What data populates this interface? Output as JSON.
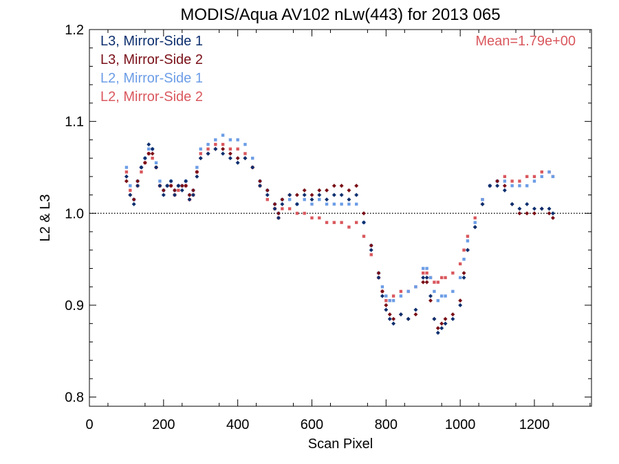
{
  "chart_data": {
    "type": "scatter",
    "title": "MODIS/Aqua AV102 nLw(443) for 2013 065",
    "xlabel": "Scan Pixel",
    "ylabel": "L2 & L3",
    "xlim": [
      0,
      1354
    ],
    "ylim": [
      0.79,
      1.2
    ],
    "xticks": [
      0,
      200,
      400,
      600,
      800,
      1000,
      1200
    ],
    "yticks": [
      0.8,
      0.9,
      1.0,
      1.1,
      1.2
    ],
    "ytick_labels": [
      "0.8",
      "0.9",
      "1.0",
      "1.1",
      "1.2"
    ],
    "reference_line": {
      "y": 1.0,
      "style": "dotted"
    },
    "annotation": {
      "text": "Mean=1.79e+00",
      "color": "#d9585e",
      "placement": "top-right"
    },
    "legend_placement": "top-left",
    "grid": false,
    "x_range": [
      100,
      1250
    ],
    "series": [
      {
        "name": "L3, Mirror-Side 1",
        "color": "#0d2f6e",
        "marker": "diamond",
        "points": [
          [
            100,
            1.04
          ],
          [
            110,
            1.02
          ],
          [
            120,
            1.01
          ],
          [
            130,
            1.03
          ],
          [
            140,
            1.05
          ],
          [
            150,
            1.06
          ],
          [
            160,
            1.075
          ],
          [
            170,
            1.07
          ],
          [
            180,
            1.05
          ],
          [
            190,
            1.03
          ],
          [
            200,
            1.02
          ],
          [
            210,
            1.03
          ],
          [
            220,
            1.035
          ],
          [
            230,
            1.02
          ],
          [
            240,
            1.03
          ],
          [
            250,
            1.025
          ],
          [
            260,
            1.035
          ],
          [
            270,
            1.015
          ],
          [
            280,
            1.02
          ],
          [
            290,
            1.04
          ],
          [
            300,
            1.06
          ],
          [
            320,
            1.065
          ],
          [
            340,
            1.07
          ],
          [
            360,
            1.065
          ],
          [
            380,
            1.06
          ],
          [
            400,
            1.055
          ],
          [
            420,
            1.06
          ],
          [
            440,
            1.05
          ],
          [
            460,
            1.03
          ],
          [
            480,
            1.02
          ],
          [
            500,
            1.005
          ],
          [
            510,
            0.995
          ],
          [
            520,
            1.01
          ],
          [
            540,
            1.02
          ],
          [
            560,
            1.01
          ],
          [
            580,
            1.02
          ],
          [
            600,
            1.015
          ],
          [
            620,
            1.02
          ],
          [
            640,
            1.015
          ],
          [
            660,
            1.02
          ],
          [
            680,
            1.02
          ],
          [
            700,
            1.015
          ],
          [
            720,
            1.02
          ],
          [
            740,
            0.99
          ],
          [
            760,
            0.96
          ],
          [
            780,
            0.93
          ],
          [
            790,
            0.91
          ],
          [
            800,
            0.895
          ],
          [
            810,
            0.885
          ],
          [
            820,
            0.88
          ],
          [
            840,
            0.89
          ],
          [
            860,
            0.885
          ],
          [
            880,
            0.895
          ],
          [
            900,
            0.93
          ],
          [
            910,
            0.93
          ],
          [
            920,
            0.91
          ],
          [
            930,
            0.885
          ],
          [
            940,
            0.87
          ],
          [
            950,
            0.875
          ],
          [
            960,
            0.88
          ],
          [
            980,
            0.885
          ],
          [
            1000,
            0.9
          ],
          [
            1010,
            0.93
          ],
          [
            1020,
            0.96
          ],
          [
            1040,
            0.985
          ],
          [
            1060,
            1.01
          ],
          [
            1080,
            1.03
          ],
          [
            1100,
            1.03
          ],
          [
            1120,
            1.025
          ],
          [
            1140,
            1.01
          ],
          [
            1160,
            1.005
          ],
          [
            1180,
            1.01
          ],
          [
            1200,
            1.005
          ],
          [
            1220,
            1.005
          ],
          [
            1240,
            1.005
          ],
          [
            1250,
            1.0
          ]
        ]
      },
      {
        "name": "L3, Mirror-Side 2",
        "color": "#7a1018",
        "marker": "diamond",
        "points": [
          [
            100,
            1.035
          ],
          [
            110,
            1.02
          ],
          [
            120,
            1.015
          ],
          [
            130,
            1.035
          ],
          [
            140,
            1.05
          ],
          [
            150,
            1.055
          ],
          [
            160,
            1.065
          ],
          [
            170,
            1.065
          ],
          [
            180,
            1.05
          ],
          [
            190,
            1.03
          ],
          [
            200,
            1.025
          ],
          [
            210,
            1.03
          ],
          [
            220,
            1.03
          ],
          [
            230,
            1.025
          ],
          [
            240,
            1.03
          ],
          [
            250,
            1.03
          ],
          [
            260,
            1.03
          ],
          [
            270,
            1.02
          ],
          [
            280,
            1.025
          ],
          [
            290,
            1.045
          ],
          [
            300,
            1.06
          ],
          [
            320,
            1.065
          ],
          [
            340,
            1.07
          ],
          [
            360,
            1.07
          ],
          [
            380,
            1.065
          ],
          [
            400,
            1.06
          ],
          [
            420,
            1.06
          ],
          [
            440,
            1.05
          ],
          [
            460,
            1.035
          ],
          [
            480,
            1.025
          ],
          [
            500,
            1.01
          ],
          [
            510,
            1.0
          ],
          [
            520,
            1.015
          ],
          [
            540,
            1.02
          ],
          [
            560,
            1.02
          ],
          [
            580,
            1.025
          ],
          [
            600,
            1.02
          ],
          [
            620,
            1.025
          ],
          [
            640,
            1.025
          ],
          [
            660,
            1.03
          ],
          [
            680,
            1.03
          ],
          [
            700,
            1.025
          ],
          [
            720,
            1.03
          ],
          [
            740,
            1.0
          ],
          [
            760,
            0.965
          ],
          [
            780,
            0.935
          ],
          [
            790,
            0.915
          ],
          [
            800,
            0.9
          ],
          [
            810,
            0.89
          ],
          [
            820,
            0.885
          ],
          [
            840,
            0.89
          ],
          [
            860,
            0.885
          ],
          [
            880,
            0.89
          ],
          [
            900,
            0.925
          ],
          [
            910,
            0.925
          ],
          [
            920,
            0.905
          ],
          [
            930,
            0.885
          ],
          [
            940,
            0.875
          ],
          [
            950,
            0.88
          ],
          [
            960,
            0.885
          ],
          [
            980,
            0.89
          ],
          [
            1000,
            0.905
          ],
          [
            1010,
            0.935
          ],
          [
            1020,
            0.96
          ],
          [
            1040,
            0.985
          ],
          [
            1060,
            1.01
          ],
          [
            1080,
            1.03
          ],
          [
            1100,
            1.035
          ],
          [
            1120,
            1.03
          ],
          [
            1140,
            1.01
          ],
          [
            1160,
            1.0
          ],
          [
            1180,
            1.0
          ],
          [
            1200,
            1.0
          ],
          [
            1220,
            1.005
          ],
          [
            1240,
            1.0
          ],
          [
            1250,
            0.995
          ]
        ]
      },
      {
        "name": "L2, Mirror-Side 1",
        "color": "#6c9de6",
        "marker": "square",
        "points": [
          [
            100,
            1.05
          ],
          [
            110,
            1.03
          ],
          [
            120,
            1.015
          ],
          [
            130,
            1.035
          ],
          [
            140,
            1.05
          ],
          [
            150,
            1.06
          ],
          [
            160,
            1.07
          ],
          [
            170,
            1.07
          ],
          [
            180,
            1.055
          ],
          [
            190,
            1.035
          ],
          [
            200,
            1.025
          ],
          [
            210,
            1.03
          ],
          [
            220,
            1.035
          ],
          [
            230,
            1.025
          ],
          [
            240,
            1.03
          ],
          [
            250,
            1.03
          ],
          [
            260,
            1.035
          ],
          [
            270,
            1.02
          ],
          [
            280,
            1.025
          ],
          [
            290,
            1.05
          ],
          [
            300,
            1.07
          ],
          [
            320,
            1.075
          ],
          [
            340,
            1.08
          ],
          [
            360,
            1.085
          ],
          [
            380,
            1.08
          ],
          [
            400,
            1.08
          ],
          [
            420,
            1.075
          ],
          [
            440,
            1.06
          ],
          [
            460,
            1.035
          ],
          [
            480,
            1.025
          ],
          [
            500,
            1.01
          ],
          [
            510,
            1.0
          ],
          [
            520,
            1.015
          ],
          [
            540,
            1.015
          ],
          [
            560,
            1.01
          ],
          [
            580,
            1.015
          ],
          [
            600,
            1.01
          ],
          [
            620,
            1.015
          ],
          [
            640,
            1.01
          ],
          [
            660,
            1.01
          ],
          [
            680,
            1.01
          ],
          [
            700,
            1.01
          ],
          [
            720,
            1.01
          ],
          [
            740,
            0.99
          ],
          [
            760,
            0.965
          ],
          [
            780,
            0.935
          ],
          [
            790,
            0.92
          ],
          [
            800,
            0.91
          ],
          [
            810,
            0.905
          ],
          [
            820,
            0.905
          ],
          [
            840,
            0.91
          ],
          [
            860,
            0.915
          ],
          [
            880,
            0.92
          ],
          [
            900,
            0.94
          ],
          [
            910,
            0.94
          ],
          [
            920,
            0.93
          ],
          [
            930,
            0.915
          ],
          [
            940,
            0.905
          ],
          [
            950,
            0.91
          ],
          [
            960,
            0.91
          ],
          [
            980,
            0.915
          ],
          [
            1000,
            0.93
          ],
          [
            1010,
            0.95
          ],
          [
            1020,
            0.97
          ],
          [
            1040,
            0.99
          ],
          [
            1060,
            1.015
          ],
          [
            1080,
            1.03
          ],
          [
            1100,
            1.035
          ],
          [
            1120,
            1.035
          ],
          [
            1140,
            1.03
          ],
          [
            1160,
            1.03
          ],
          [
            1180,
            1.03
          ],
          [
            1200,
            1.035
          ],
          [
            1220,
            1.04
          ],
          [
            1240,
            1.045
          ],
          [
            1250,
            1.04
          ]
        ]
      },
      {
        "name": "L2, Mirror-Side 2",
        "color": "#d9585e",
        "marker": "square",
        "points": [
          [
            100,
            1.045
          ],
          [
            110,
            1.025
          ],
          [
            120,
            1.015
          ],
          [
            130,
            1.03
          ],
          [
            140,
            1.045
          ],
          [
            150,
            1.055
          ],
          [
            160,
            1.065
          ],
          [
            170,
            1.06
          ],
          [
            180,
            1.05
          ],
          [
            190,
            1.03
          ],
          [
            200,
            1.025
          ],
          [
            210,
            1.03
          ],
          [
            220,
            1.03
          ],
          [
            230,
            1.02
          ],
          [
            240,
            1.025
          ],
          [
            250,
            1.03
          ],
          [
            260,
            1.03
          ],
          [
            270,
            1.015
          ],
          [
            280,
            1.02
          ],
          [
            290,
            1.045
          ],
          [
            300,
            1.065
          ],
          [
            320,
            1.07
          ],
          [
            340,
            1.075
          ],
          [
            360,
            1.075
          ],
          [
            380,
            1.07
          ],
          [
            400,
            1.07
          ],
          [
            420,
            1.065
          ],
          [
            440,
            1.05
          ],
          [
            460,
            1.03
          ],
          [
            480,
            1.015
          ],
          [
            500,
            1.005
          ],
          [
            510,
            0.995
          ],
          [
            520,
            1.005
          ],
          [
            540,
            1.005
          ],
          [
            560,
            1.0
          ],
          [
            580,
            1.0
          ],
          [
            600,
            0.995
          ],
          [
            620,
            0.995
          ],
          [
            640,
            0.99
          ],
          [
            660,
            0.99
          ],
          [
            680,
            0.99
          ],
          [
            700,
            0.985
          ],
          [
            720,
            0.99
          ],
          [
            740,
            0.975
          ],
          [
            760,
            0.955
          ],
          [
            780,
            0.93
          ],
          [
            790,
            0.915
          ],
          [
            800,
            0.905
          ],
          [
            810,
            0.905
          ],
          [
            820,
            0.91
          ],
          [
            840,
            0.915
          ],
          [
            860,
            0.915
          ],
          [
            880,
            0.92
          ],
          [
            900,
            0.935
          ],
          [
            910,
            0.935
          ],
          [
            920,
            0.93
          ],
          [
            930,
            0.925
          ],
          [
            940,
            0.925
          ],
          [
            950,
            0.93
          ],
          [
            960,
            0.93
          ],
          [
            980,
            0.935
          ],
          [
            1000,
            0.945
          ],
          [
            1010,
            0.96
          ],
          [
            1020,
            0.975
          ],
          [
            1040,
            0.995
          ],
          [
            1060,
            1.015
          ],
          [
            1080,
            1.03
          ],
          [
            1100,
            1.035
          ],
          [
            1120,
            1.04
          ],
          [
            1140,
            1.035
          ],
          [
            1160,
            1.035
          ],
          [
            1180,
            1.04
          ],
          [
            1200,
            1.04
          ],
          [
            1220,
            1.045
          ],
          [
            1240,
            1.045
          ],
          [
            1250,
            1.04
          ]
        ]
      }
    ]
  }
}
